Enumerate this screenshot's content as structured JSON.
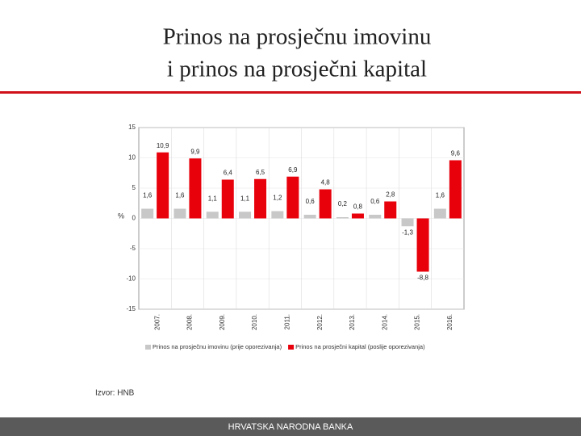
{
  "header": {
    "title_lines": [
      "Prinos na prosječnu imovinu",
      "i prinos na prosječni kapital"
    ]
  },
  "chart_data": {
    "type": "bar",
    "categories": [
      "2007.",
      "2008.",
      "2009.",
      "2010.",
      "2011.",
      "2012.",
      "2013.",
      "2014.",
      "2015.",
      "2016."
    ],
    "y_label": "%",
    "series": [
      {
        "name": "Prinos na prosječnu imovinu (prije oporezivanja)",
        "color": "#c8c8c8",
        "values": [
          1.6,
          1.6,
          1.1,
          1.1,
          1.2,
          0.6,
          0.2,
          0.6,
          -1.3,
          1.6
        ],
        "value_labels": [
          "1,6",
          "1,6",
          "1,1",
          "1,1",
          "1,2",
          "0,6",
          "0,2",
          "0,6",
          "-1,3",
          "1,6"
        ]
      },
      {
        "name": "Prinos na prosječni kapital (poslije oporezivanja)",
        "color": "#e8000b",
        "values": [
          10.9,
          9.9,
          6.4,
          6.5,
          6.9,
          4.8,
          0.8,
          2.8,
          -8.8,
          9.6
        ],
        "value_labels": [
          "10,9",
          "9,9",
          "6,4",
          "6,5",
          "6,9",
          "4,8",
          "0,8",
          "2,8",
          "-8,8",
          "9,6"
        ]
      }
    ],
    "ylim": [
      -15,
      15
    ],
    "yticks": [
      15,
      10,
      5,
      0,
      -5,
      -10,
      -15
    ],
    "grid": true
  },
  "source": "Izvor: HNB",
  "footer": "HRVATSKA NARODNA BANKA"
}
